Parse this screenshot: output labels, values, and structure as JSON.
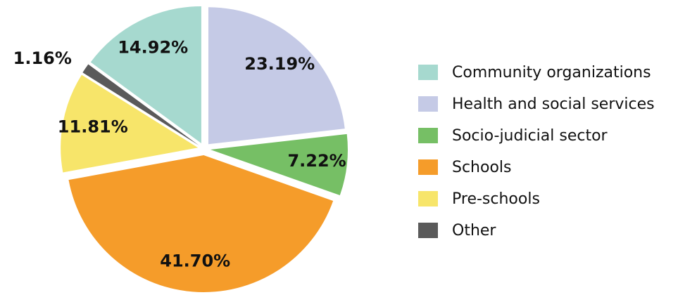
{
  "chart_data": {
    "type": "pie",
    "categories": [
      "Health and social services",
      "Socio-judicial sector",
      "Schools",
      "Pre-schools",
      "Other",
      "Community organizations"
    ],
    "values": [
      23.19,
      7.22,
      41.7,
      11.81,
      1.16,
      14.92
    ],
    "value_labels": [
      "23.19%",
      "7.22%",
      "41.70%",
      "11.81%",
      "1.16%",
      "14.92%"
    ],
    "colors": [
      "#c5cae6",
      "#76bf65",
      "#f59c2a",
      "#f7e56a",
      "#5a5a5a",
      "#a6d9cf"
    ],
    "legend_order": [
      5,
      0,
      1,
      2,
      3,
      4
    ],
    "legend": "right"
  }
}
